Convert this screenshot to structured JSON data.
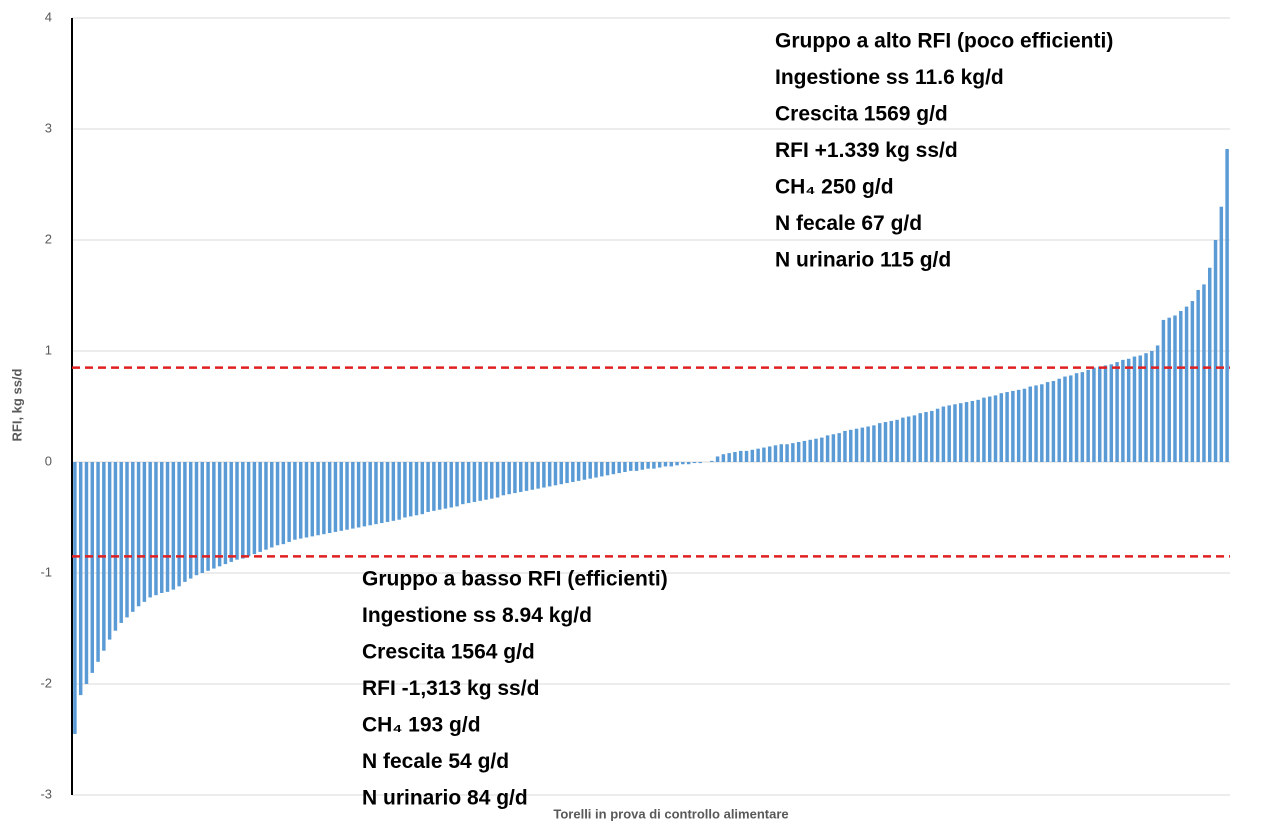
{
  "chart_data": {
    "type": "bar",
    "xlabel": "Torelli in prova di controllo alimentare",
    "ylabel": "RFI, kg ss/d",
    "color": "#5b9bd5",
    "ylim": [
      -3,
      4
    ],
    "yticks": [
      -3,
      -2,
      -1,
      0,
      1,
      2,
      3,
      4
    ],
    "grid": true,
    "thresholds": [
      0.85,
      -0.85
    ],
    "threshold_color": "#e02020",
    "values": [
      -2.45,
      -2.1,
      -2.0,
      -1.9,
      -1.8,
      -1.7,
      -1.6,
      -1.52,
      -1.45,
      -1.4,
      -1.35,
      -1.3,
      -1.26,
      -1.22,
      -1.2,
      -1.18,
      -1.17,
      -1.15,
      -1.12,
      -1.08,
      -1.05,
      -1.02,
      -1.0,
      -0.98,
      -0.96,
      -0.94,
      -0.92,
      -0.9,
      -0.88,
      -0.87,
      -0.85,
      -0.83,
      -0.81,
      -0.79,
      -0.77,
      -0.75,
      -0.74,
      -0.72,
      -0.7,
      -0.69,
      -0.68,
      -0.67,
      -0.66,
      -0.65,
      -0.64,
      -0.63,
      -0.62,
      -0.61,
      -0.6,
      -0.59,
      -0.58,
      -0.57,
      -0.56,
      -0.55,
      -0.54,
      -0.53,
      -0.52,
      -0.5,
      -0.49,
      -0.48,
      -0.47,
      -0.45,
      -0.44,
      -0.43,
      -0.42,
      -0.41,
      -0.4,
      -0.38,
      -0.37,
      -0.36,
      -0.35,
      -0.34,
      -0.33,
      -0.32,
      -0.3,
      -0.29,
      -0.28,
      -0.27,
      -0.26,
      -0.25,
      -0.24,
      -0.23,
      -0.22,
      -0.21,
      -0.2,
      -0.19,
      -0.18,
      -0.17,
      -0.16,
      -0.15,
      -0.14,
      -0.13,
      -0.12,
      -0.11,
      -0.1,
      -0.09,
      -0.08,
      -0.08,
      -0.07,
      -0.06,
      -0.06,
      -0.05,
      -0.04,
      -0.04,
      -0.03,
      -0.02,
      -0.02,
      -0.01,
      -0.01,
      0.0,
      0.01,
      0.05,
      0.07,
      0.08,
      0.09,
      0.1,
      0.1,
      0.11,
      0.12,
      0.13,
      0.14,
      0.15,
      0.16,
      0.16,
      0.17,
      0.18,
      0.19,
      0.2,
      0.21,
      0.22,
      0.24,
      0.25,
      0.26,
      0.28,
      0.29,
      0.3,
      0.31,
      0.32,
      0.33,
      0.35,
      0.36,
      0.37,
      0.38,
      0.4,
      0.41,
      0.42,
      0.44,
      0.45,
      0.46,
      0.48,
      0.5,
      0.51,
      0.52,
      0.53,
      0.54,
      0.55,
      0.56,
      0.58,
      0.59,
      0.6,
      0.62,
      0.63,
      0.64,
      0.65,
      0.66,
      0.68,
      0.69,
      0.7,
      0.72,
      0.73,
      0.75,
      0.77,
      0.78,
      0.8,
      0.81,
      0.83,
      0.85,
      0.86,
      0.87,
      0.88,
      0.9,
      0.92,
      0.93,
      0.95,
      0.96,
      0.98,
      1.0,
      1.05,
      1.28,
      1.3,
      1.32,
      1.36,
      1.4,
      1.45,
      1.55,
      1.6,
      1.75,
      2.0,
      2.3,
      2.82
    ],
    "annotations": [
      {
        "lines": [
          "Gruppo a alto RFI (poco efficienti)",
          "Ingestione ss 11.6 kg/d",
          "Crescita 1569 g/d",
          "RFI +1.339 kg ss/d",
          "CH₄ 250 g/d",
          "N fecale 67 g/d",
          "N urinario 115 g/d"
        ]
      },
      {
        "lines": [
          "Gruppo a basso RFI (efficienti)",
          "Ingestione ss 8.94 kg/d",
          "Crescita 1564 g/d",
          "RFI -1,313 kg ss/d",
          "CH₄ 193 g/d",
          "N fecale 54 g/d",
          "N urinario 84 g/d"
        ]
      }
    ]
  }
}
